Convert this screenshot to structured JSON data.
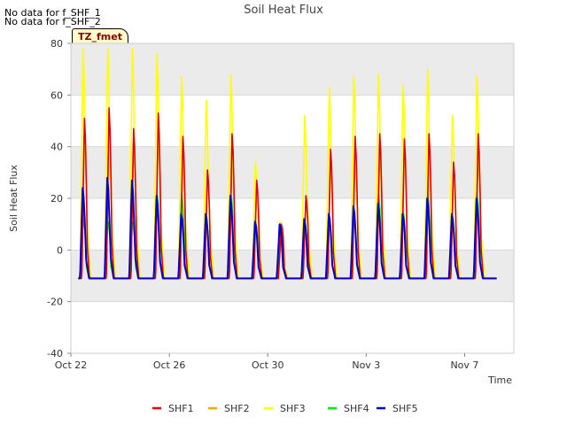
{
  "notes": [
    "No data for f_SHF_1",
    "No data for f_SHF_2"
  ],
  "site_label": "TZ_fmet",
  "chart_data": {
    "type": "line",
    "title": "Soil Heat Flux",
    "xlabel": "Time",
    "ylabel": "Soil Heat Flux",
    "ylim": [
      -40,
      80
    ],
    "yticks": [
      -40,
      -20,
      0,
      20,
      40,
      60,
      80
    ],
    "xlim": [
      0,
      18
    ],
    "xticks": [
      {
        "value": 0,
        "label": "Oct 22"
      },
      {
        "value": 4,
        "label": "Oct 26"
      },
      {
        "value": 8,
        "label": "Oct 30"
      },
      {
        "value": 12,
        "label": "Nov 3"
      },
      {
        "value": 16,
        "label": "Nov 7"
      }
    ],
    "x_start": 0.3,
    "x_end": 17.3,
    "shaded_bands": [
      [
        -20,
        0
      ],
      [
        20,
        40
      ],
      [
        60,
        80
      ]
    ],
    "daily_peaks": {
      "days": [
        0,
        1,
        2,
        3,
        4,
        5,
        6,
        7,
        8,
        9,
        10,
        11,
        12,
        13,
        14,
        15,
        16
      ],
      "SHF1": [
        51,
        55,
        47,
        53,
        44,
        31,
        45,
        27,
        10,
        21,
        39,
        44,
        45,
        43,
        45,
        34,
        45
      ],
      "SHF2": [
        45,
        50,
        42,
        48,
        38,
        30,
        35,
        24,
        9,
        19,
        32,
        38,
        40,
        38,
        40,
        32,
        38
      ],
      "SHF3": [
        78,
        78,
        78,
        76,
        67,
        58,
        68,
        34,
        11,
        52,
        63,
        67,
        68,
        64,
        70,
        52,
        67
      ],
      "SHF4": [
        12,
        11,
        11,
        22,
        22,
        11,
        22,
        11,
        9,
        11,
        11,
        11,
        22,
        15,
        22,
        11,
        22
      ],
      "SHF5": [
        24,
        28,
        27,
        21,
        14,
        14,
        21,
        11,
        10,
        12,
        14,
        17,
        18,
        14,
        20,
        14,
        20
      ]
    },
    "night_baseline": -11,
    "series": [
      {
        "name": "SHF1",
        "color": "#e00000"
      },
      {
        "name": "SHF2",
        "color": "#ffa500"
      },
      {
        "name": "SHF3",
        "color": "#ffff00"
      },
      {
        "name": "SHF4",
        "color": "#00ee00"
      },
      {
        "name": "SHF5",
        "color": "#0000cc"
      }
    ]
  }
}
